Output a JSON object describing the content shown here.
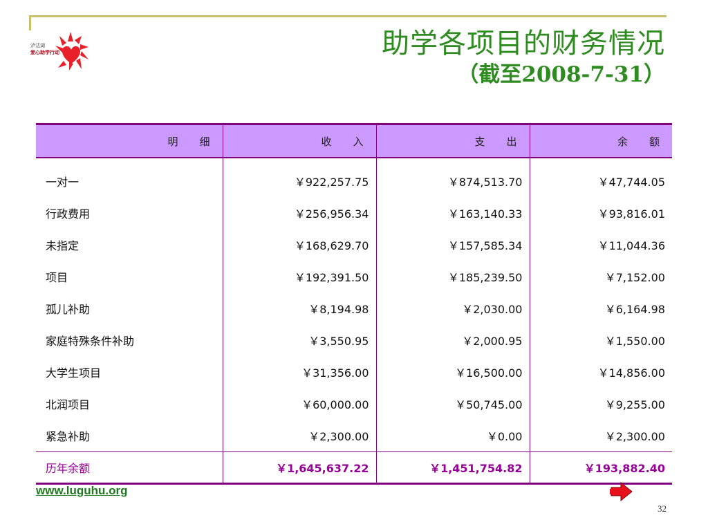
{
  "slide": {
    "title": "助学各项目的财务情况",
    "subtitle": "（截至2008-7-31）",
    "page_number": "32",
    "website": "www.luguhu.org"
  },
  "logo": {
    "text_line1": "泸沽湖",
    "text_line2": "爱心助学行动"
  },
  "table": {
    "headers": [
      "明　细",
      "收　入",
      "支　出",
      "余　额"
    ],
    "rows": [
      [
        "一对一",
        "￥922,257.75",
        "￥874,513.70",
        "￥47,744.05"
      ],
      [
        "行政费用",
        "￥256,956.34",
        "￥163,140.33",
        "￥93,816.01"
      ],
      [
        "未指定",
        "￥168,629.70",
        "￥157,585.34",
        "￥11,044.36"
      ],
      [
        "项目",
        "￥192,391.50",
        "￥185,239.50",
        "￥7,152.00"
      ],
      [
        "孤儿补助",
        "￥8,194.98",
        "￥2,030.00",
        "￥6,164.98"
      ],
      [
        "家庭特殊条件补助",
        "￥3,550.95",
        "￥2,000.95",
        "￥1,550.00"
      ],
      [
        "大学生项目",
        "￥31,356.00",
        "￥16,500.00",
        "￥14,856.00"
      ],
      [
        "北润项目",
        "￥60,000.00",
        "￥50,745.00",
        "￥9,255.00"
      ],
      [
        "紧急补助",
        "￥2,300.00",
        "￥0.00",
        "￥2,300.00"
      ]
    ],
    "total": [
      "历年余额",
      "￥1,645,637.22",
      "￥1,451,754.82",
      "￥193,882.40"
    ]
  },
  "colors": {
    "title": "#2e8b1f",
    "header_bg": "#cc99ff",
    "border": "#800080",
    "total_text": "#990099",
    "logo_red": "#e8202a"
  },
  "icons": {
    "next": "right-arrow-icon",
    "logo": "sun-heart-logo-icon"
  }
}
